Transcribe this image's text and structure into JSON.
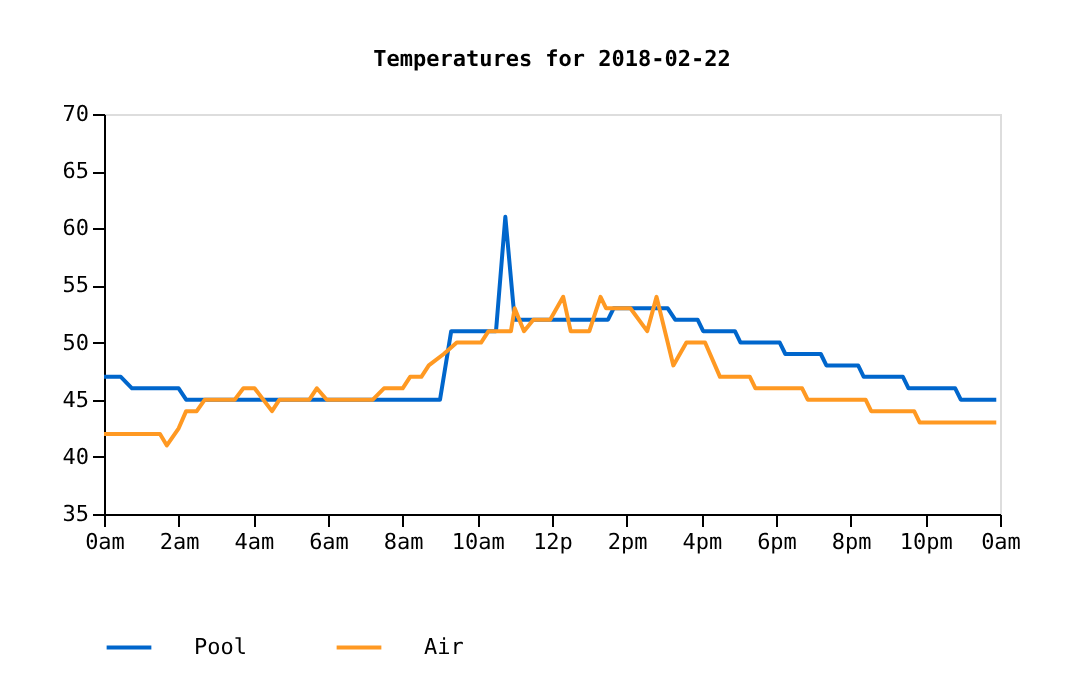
{
  "chart_data": {
    "type": "line",
    "title": "Temperatures for 2018-02-22",
    "xlim": [
      "2018-02-22T00:00",
      "2018-02-23T00:00"
    ],
    "ylim": [
      35,
      70
    ],
    "yticks": [
      35,
      40,
      45,
      50,
      55,
      60,
      65,
      70
    ],
    "xticks": [
      {
        "value": "2018-02-22T00:00",
        "label": "0am"
      },
      {
        "value": "2018-02-22T02:00",
        "label": "2am"
      },
      {
        "value": "2018-02-22T04:00",
        "label": "4am"
      },
      {
        "value": "2018-02-22T06:00",
        "label": "6am"
      },
      {
        "value": "2018-02-22T08:00",
        "label": "8am"
      },
      {
        "value": "2018-02-22T10:00",
        "label": "10am"
      },
      {
        "value": "2018-02-22T12:00",
        "label": "12p"
      },
      {
        "value": "2018-02-22T14:00",
        "label": "2pm"
      },
      {
        "value": "2018-02-22T16:00",
        "label": "4pm"
      },
      {
        "value": "2018-02-22T18:00",
        "label": "6pm"
      },
      {
        "value": "2018-02-22T20:00",
        "label": "8pm"
      },
      {
        "value": "2018-02-22T22:00",
        "label": "10pm"
      },
      {
        "value": "2018-02-23T00:00",
        "label": "0am"
      }
    ],
    "grid": false,
    "legend": "bottom left",
    "marker": "none",
    "line_style": "solid",
    "series": [
      {
        "name": "Pool",
        "color": "#0066cc",
        "x": [
          "2018-02-22T00:00",
          "2018-02-22T00:27",
          "2018-02-22T00:45",
          "2018-02-22T02:00",
          "2018-02-22T02:12",
          "2018-02-22T09:00",
          "2018-02-22T09:18",
          "2018-02-22T10:30",
          "2018-02-22T10:45",
          "2018-02-22T11:00",
          "2018-02-22T13:30",
          "2018-02-22T13:39",
          "2018-02-22T15:06",
          "2018-02-22T15:18",
          "2018-02-22T15:54",
          "2018-02-22T16:03",
          "2018-02-22T16:54",
          "2018-02-22T17:03",
          "2018-02-22T18:06",
          "2018-02-22T18:15",
          "2018-02-22T19:12",
          "2018-02-22T19:21",
          "2018-02-22T20:12",
          "2018-02-22T20:21",
          "2018-02-22T21:24",
          "2018-02-22T21:33",
          "2018-02-22T22:48",
          "2018-02-22T22:57",
          "2018-02-22T23:54"
        ],
        "values": [
          47,
          47,
          46,
          46,
          45,
          45,
          51,
          51,
          61,
          52,
          52,
          53,
          53,
          52,
          52,
          51,
          51,
          50,
          50,
          49,
          49,
          48,
          48,
          47,
          47,
          46,
          46,
          45,
          45
        ]
      },
      {
        "name": "Air",
        "color": "#ff9922",
        "x": [
          "2018-02-22T00:00",
          "2018-02-22T01:30",
          "2018-02-22T01:41",
          "2018-02-22T02:00",
          "2018-02-22T02:12",
          "2018-02-22T02:29",
          "2018-02-22T02:42",
          "2018-02-22T03:30",
          "2018-02-22T03:44",
          "2018-02-22T04:02",
          "2018-02-22T04:30",
          "2018-02-22T04:42",
          "2018-02-22T05:30",
          "2018-02-22T05:42",
          "2018-02-22T05:58",
          "2018-02-22T07:12",
          "2018-02-22T07:30",
          "2018-02-22T08:00",
          "2018-02-22T08:12",
          "2018-02-22T08:30",
          "2018-02-22T08:42",
          "2018-02-22T09:06",
          "2018-02-22T09:27",
          "2018-02-22T10:06",
          "2018-02-22T10:18",
          "2018-02-22T10:54",
          "2018-02-22T11:00",
          "2018-02-22T11:15",
          "2018-02-22T11:30",
          "2018-02-22T11:57",
          "2018-02-22T12:18",
          "2018-02-22T12:30",
          "2018-02-22T13:00",
          "2018-02-22T13:18",
          "2018-02-22T13:27",
          "2018-02-22T14:06",
          "2018-02-22T14:33",
          "2018-02-22T14:48",
          "2018-02-22T15:15",
          "2018-02-22T15:36",
          "2018-02-22T16:06",
          "2018-02-22T16:30",
          "2018-02-22T17:18",
          "2018-02-22T17:27",
          "2018-02-22T18:42",
          "2018-02-22T18:51",
          "2018-02-22T20:24",
          "2018-02-22T20:33",
          "2018-02-22T21:42",
          "2018-02-22T21:51",
          "2018-02-22T23:54"
        ],
        "values": [
          42,
          42,
          41,
          42.5,
          44,
          44,
          45,
          45,
          46,
          46,
          44,
          45,
          45,
          46,
          45,
          45,
          46,
          46,
          47,
          47,
          48,
          49,
          50,
          50,
          51,
          51,
          53,
          51,
          52,
          52,
          54,
          51,
          51,
          54,
          53,
          53,
          51,
          54,
          48,
          50,
          50,
          47,
          47,
          46,
          46,
          45,
          45,
          44,
          44,
          43,
          43
        ]
      }
    ]
  }
}
